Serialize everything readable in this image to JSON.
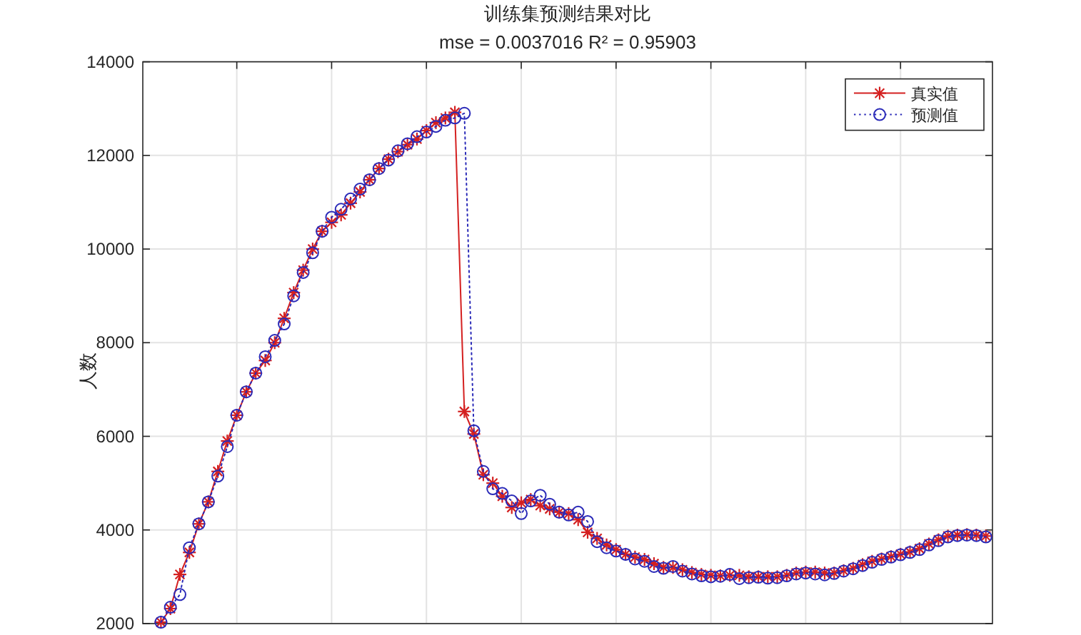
{
  "chart_data": {
    "type": "line",
    "title": "训练集预测结果对比",
    "subtitle": "mse = 0.0037016 R² = 0.95903",
    "ylabel": "人数",
    "categories": [
      null,
      null,
      null,
      null,
      null,
      null,
      null,
      null,
      null,
      null,
      null,
      null,
      null,
      null,
      null,
      null,
      null,
      null,
      null,
      null,
      null,
      null,
      null,
      null,
      null,
      null,
      null,
      null,
      null,
      null,
      null,
      null,
      null,
      null,
      null,
      null,
      null,
      null,
      null,
      null,
      null,
      null,
      null,
      null,
      null,
      null,
      null,
      null,
      null,
      null,
      null,
      null,
      null,
      null,
      null,
      null,
      null,
      null,
      null,
      null,
      null,
      null,
      null,
      null,
      null,
      null,
      null,
      null,
      null,
      null,
      null,
      null,
      null,
      null,
      null,
      null,
      null,
      null,
      null,
      null,
      null,
      null,
      null,
      null,
      null,
      null,
      null,
      null
    ],
    "series": [
      {
        "name": "真实值",
        "color": "#d42020",
        "marker": "cross",
        "line_style": "solid",
        "values": [
          2030,
          2320,
          3050,
          3520,
          4130,
          4600,
          5250,
          5900,
          6450,
          6950,
          7350,
          7620,
          8000,
          8520,
          9070,
          9550,
          10000,
          10380,
          10570,
          10730,
          10980,
          11220,
          11480,
          11720,
          11920,
          12080,
          12230,
          12350,
          12530,
          12700,
          12800,
          12920,
          6530,
          6050,
          5180,
          5000,
          4720,
          4480,
          4580,
          4650,
          4520,
          4450,
          4380,
          4350,
          4220,
          3950,
          3820,
          3680,
          3580,
          3480,
          3420,
          3370,
          3280,
          3200,
          3200,
          3150,
          3090,
          3050,
          3030,
          3020,
          3030,
          3030,
          3000,
          3000,
          3000,
          3000,
          3030,
          3080,
          3100,
          3100,
          3080,
          3080,
          3130,
          3180,
          3260,
          3330,
          3380,
          3430,
          3480,
          3530,
          3600,
          3700,
          3790,
          3870,
          3890,
          3900,
          3890,
          3870
        ]
      },
      {
        "name": "预测值",
        "color": "#2a2ab8",
        "marker": "circle",
        "line_style": "dotted",
        "values": [
          2030,
          2350,
          2620,
          3620,
          4130,
          4600,
          5150,
          5780,
          6450,
          6950,
          7350,
          7700,
          8050,
          8400,
          9000,
          9500,
          9920,
          10380,
          10680,
          10850,
          11070,
          11280,
          11480,
          11720,
          11900,
          12100,
          12250,
          12400,
          12500,
          12620,
          12750,
          12800,
          12900,
          6120,
          5250,
          4880,
          4780,
          4620,
          4350,
          4620,
          4740,
          4550,
          4380,
          4320,
          4380,
          4180,
          3750,
          3620,
          3550,
          3480,
          3380,
          3330,
          3220,
          3180,
          3220,
          3120,
          3060,
          3020,
          3000,
          3010,
          3050,
          2960,
          2980,
          2990,
          2970,
          2980,
          3020,
          3060,
          3080,
          3060,
          3040,
          3070,
          3120,
          3170,
          3240,
          3310,
          3370,
          3420,
          3470,
          3520,
          3580,
          3680,
          3770,
          3850,
          3880,
          3890,
          3880,
          3850
        ]
      }
    ],
    "ylim": [
      2000,
      14000
    ],
    "yticks": [
      2000,
      4000,
      6000,
      8000,
      10000,
      12000,
      14000
    ],
    "grid": true,
    "legend": "top right",
    "tick_labels": "y"
  }
}
